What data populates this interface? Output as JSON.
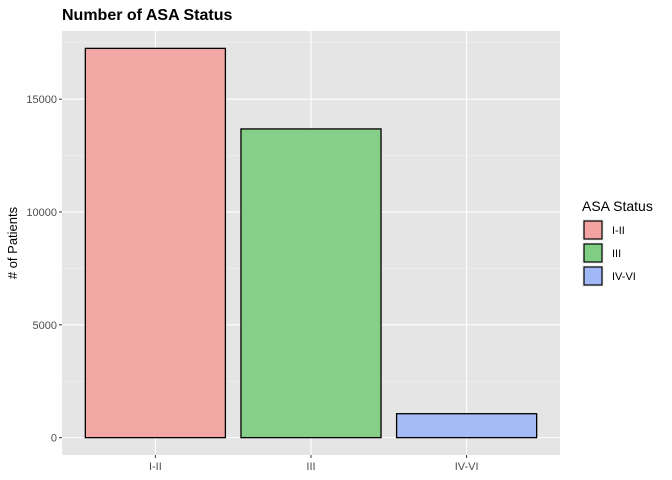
{
  "chart_data": {
    "type": "bar",
    "title": "Number of ASA Status",
    "xlabel": "",
    "ylabel": "# of Patients",
    "categories": [
      "I-II",
      "III",
      "IV-VI"
    ],
    "values": [
      17250,
      13680,
      1060
    ],
    "ylim": [
      -770,
      18020
    ],
    "yticks": [
      0,
      5000,
      10000,
      15000
    ],
    "ytick_labels": [
      "0",
      "5000",
      "10000",
      "15000"
    ],
    "grid": true,
    "legend": {
      "title": "ASA Status",
      "position": "right",
      "items": [
        "I-II",
        "III",
        "IV-VI"
      ]
    },
    "colors": [
      "#F3A3A1",
      "#7FCE84",
      "#A0B8F6"
    ],
    "panel_background": "#E5E5E5",
    "bar_outline": "#000000"
  }
}
